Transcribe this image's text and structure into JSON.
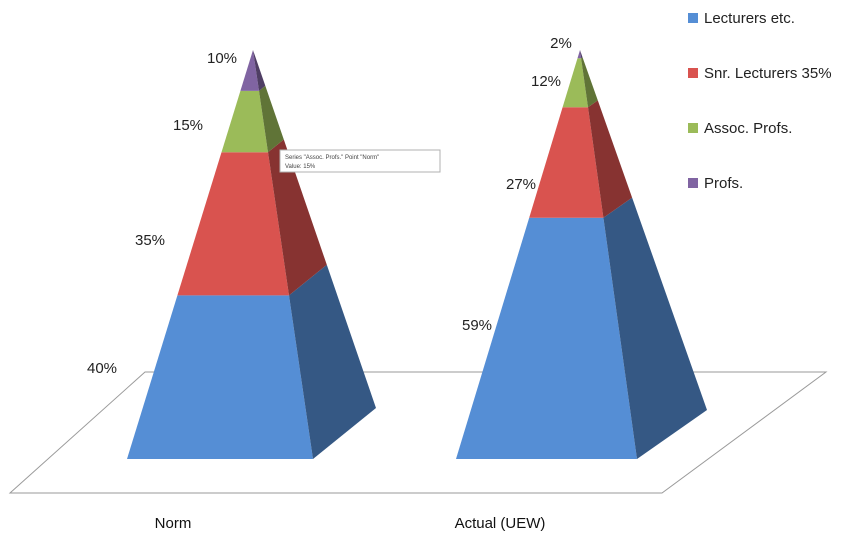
{
  "chart_data": {
    "type": "pyramid-3d",
    "title": "",
    "categories": [
      "Norm",
      "Actual (UEW)"
    ],
    "series": [
      {
        "name": "Lecturers etc.",
        "color": "#558ed5",
        "values": [
          40,
          59
        ],
        "labels": [
          "40%",
          "59%"
        ]
      },
      {
        "name": "Snr. Lecturers 35%",
        "color": "#d9534f",
        "values": [
          35,
          27
        ],
        "labels": [
          "35%",
          "27%"
        ]
      },
      {
        "name": "Assoc. Profs.",
        "color": "#9bbb59",
        "values": [
          15,
          12
        ],
        "labels": [
          "15%",
          "12%"
        ]
      },
      {
        "name": "Profs.",
        "color": "#8064a2",
        "values": [
          10,
          2
        ],
        "labels": [
          "10%",
          "2%"
        ]
      }
    ],
    "legend_position": "top-right",
    "tooltip": {
      "line1": "Series \"Assoc. Profs.\" Point \"Norm\"",
      "line2": "Value: 15%"
    }
  }
}
